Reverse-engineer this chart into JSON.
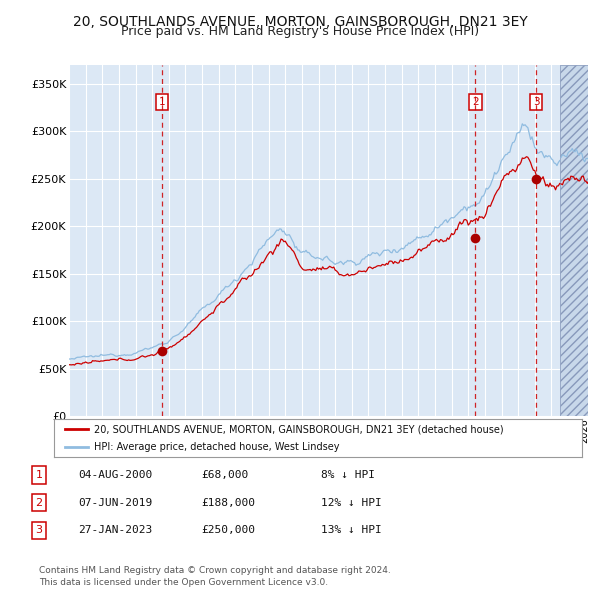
{
  "title": "20, SOUTHLANDS AVENUE, MORTON, GAINSBOROUGH, DN21 3EY",
  "subtitle": "Price paid vs. HM Land Registry's House Price Index (HPI)",
  "title_fontsize": 10,
  "subtitle_fontsize": 9,
  "ylim": [
    0,
    370000
  ],
  "yticks": [
    0,
    50000,
    100000,
    150000,
    200000,
    250000,
    300000,
    350000
  ],
  "ytick_labels": [
    "£0",
    "£50K",
    "£100K",
    "£150K",
    "£200K",
    "£250K",
    "£300K",
    "£350K"
  ],
  "xlim_start": 1995.0,
  "xlim_end": 2026.2,
  "sale_dates": [
    2000.587,
    2019.435,
    2023.074
  ],
  "sale_prices": [
    68000,
    188000,
    250000
  ],
  "sale_labels": [
    "1",
    "2",
    "3"
  ],
  "vline_color": "#cc0000",
  "sale_marker_color": "#aa0000",
  "hpi_line_color": "#90bce0",
  "price_line_color": "#cc0000",
  "bg_color": "#dce8f5",
  "grid_color": "#ffffff",
  "future_cutoff": 2024.5,
  "legend_label_red": "20, SOUTHLANDS AVENUE, MORTON, GAINSBOROUGH, DN21 3EY (detached house)",
  "legend_label_blue": "HPI: Average price, detached house, West Lindsey",
  "table_data": [
    [
      "1",
      "04-AUG-2000",
      "£68,000",
      "8% ↓ HPI"
    ],
    [
      "2",
      "07-JUN-2019",
      "£188,000",
      "12% ↓ HPI"
    ],
    [
      "3",
      "27-JAN-2023",
      "£250,000",
      "13% ↓ HPI"
    ]
  ],
  "footer": "Contains HM Land Registry data © Crown copyright and database right 2024.\nThis data is licensed under the Open Government Licence v3.0.",
  "hpi_key_years": [
    1995,
    1997,
    1999,
    2001,
    2003,
    2005,
    2007,
    2008,
    2009,
    2010,
    2011,
    2012,
    2013,
    2014,
    2015,
    2016,
    2017,
    2018,
    2019,
    2020,
    2021,
    2022,
    2022.5,
    2023,
    2023.5,
    2024,
    2024.5,
    2025,
    2025.5,
    2026.2
  ],
  "hpi_key_vals": [
    60000,
    63000,
    68000,
    80000,
    110000,
    145000,
    185000,
    195000,
    170000,
    168000,
    162000,
    163000,
    168000,
    173000,
    180000,
    188000,
    198000,
    212000,
    225000,
    232000,
    268000,
    290000,
    305000,
    285000,
    275000,
    268000,
    268000,
    275000,
    278000,
    272000
  ],
  "price_key_years": [
    1995,
    1997,
    1999,
    2001,
    2003,
    2005,
    2007,
    2008,
    2009,
    2010,
    2011,
    2012,
    2013,
    2014,
    2015,
    2016,
    2017,
    2018,
    2019,
    2020,
    2021,
    2022,
    2022.5,
    2023,
    2023.5,
    2024,
    2024.5,
    2025,
    2025.5,
    2026.2
  ],
  "price_key_vals": [
    54000,
    57000,
    61000,
    72000,
    100000,
    133000,
    170000,
    183000,
    158000,
    155000,
    150000,
    150000,
    155000,
    160000,
    165000,
    172000,
    182000,
    193000,
    206000,
    212000,
    248000,
    265000,
    272000,
    255000,
    248000,
    242000,
    242000,
    250000,
    252000,
    248000
  ]
}
